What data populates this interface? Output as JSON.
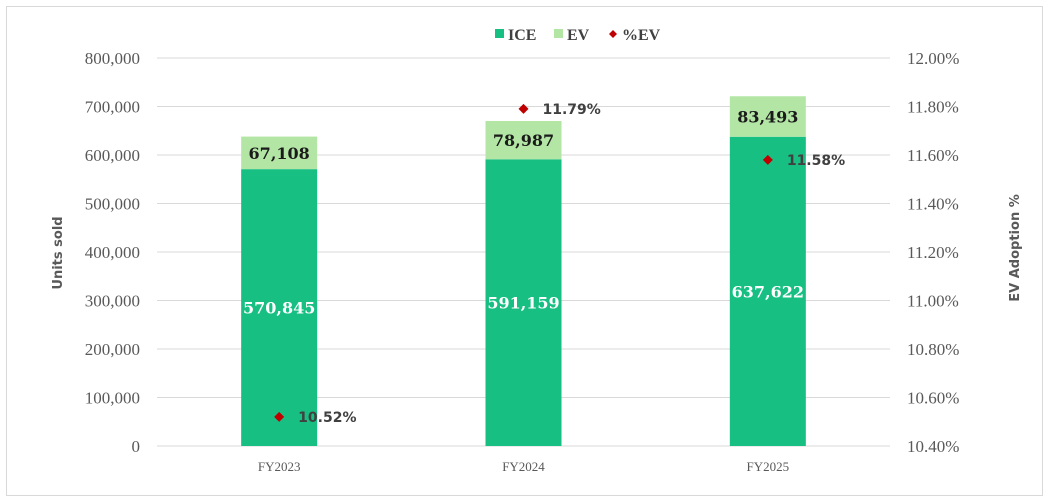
{
  "chart_data": {
    "type": "bar",
    "stacked": true,
    "categories": [
      "FY2023",
      "FY2024",
      "FY2025"
    ],
    "series": [
      {
        "name": "ICE",
        "values": [
          570845,
          591159,
          637622
        ],
        "labels": [
          "570,845",
          "591,159",
          "637,622"
        ],
        "color": "#17bf83"
      },
      {
        "name": "EV",
        "values": [
          67108,
          78987,
          83493
        ],
        "labels": [
          "67,108",
          "78,987",
          "83,493"
        ],
        "color": "#b3e6a5"
      },
      {
        "name": "%EV",
        "values": [
          10.52,
          11.79,
          11.58
        ],
        "labels": [
          "10.52%",
          "11.79%",
          "11.58%"
        ],
        "color": "#c00000",
        "axis": "secondary",
        "marker": "diamond"
      }
    ],
    "ylabel": "Units sold",
    "ylabel2": "EV Adoption %",
    "ylim": [
      0,
      800000
    ],
    "ylim2": [
      10.4,
      12.0
    ],
    "yticks": [
      "0",
      "100,000",
      "200,000",
      "300,000",
      "400,000",
      "500,000",
      "600,000",
      "700,000",
      "800,000"
    ],
    "yticks2": [
      "10.40%",
      "10.60%",
      "10.80%",
      "11.00%",
      "11.20%",
      "11.40%",
      "11.60%",
      "11.80%",
      "12.00%"
    ],
    "legend": [
      "ICE",
      "EV",
      "%EV"
    ],
    "legend_position": "top",
    "grid": true
  }
}
